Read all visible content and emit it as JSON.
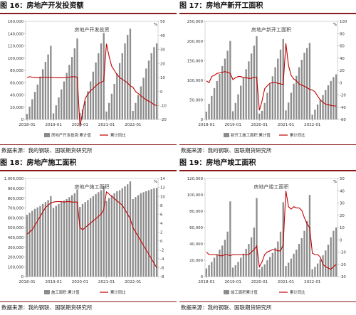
{
  "panels": [
    {
      "title": "图 16：房地产开发投资额",
      "source": "数据来源：我的钢联、国联期货研究所"
    },
    {
      "title": "图 17：房地产新开工面积",
      "source": "数据来源：我的钢联、国联期货研究所"
    },
    {
      "title": "图 18：房地产施工面积",
      "source": "数据来源：我的钢联、国联期货研究所"
    },
    {
      "title": "图 19：房地产竣工面积",
      "source": "数据来源：我的钢联、国联期货研究所"
    }
  ],
  "chart_data": [
    {
      "type": "bar+line",
      "inner_title": "房地产开发投资",
      "yticks_left": [
        "0",
        "20,000",
        "40,000",
        "60,000",
        "80,000",
        "100,000",
        "120,000",
        "140,000",
        "160,000"
      ],
      "yticks_right": [
        "-20",
        "-10",
        "0",
        "10",
        "20",
        "30",
        "40",
        "50"
      ],
      "right_unit": "%",
      "xticks": [
        "2018-01",
        "2019-01",
        "2020-01",
        "2021-01",
        "2022-01"
      ],
      "ylim_left": [
        0,
        160000
      ],
      "ylim_right": [
        -20,
        50
      ],
      "legend": [
        "房地产开发投资:累计值",
        "累计同比"
      ],
      "colors": {
        "bar": "#8c8c8c",
        "line": "#c00000"
      },
      "bars": [
        9000,
        21000,
        33000,
        45000,
        57000,
        70000,
        82000,
        94000,
        106000,
        120000,
        10000,
        23000,
        36000,
        49000,
        62000,
        76000,
        89000,
        102000,
        116000,
        132000,
        10500,
        16500,
        30000,
        46000,
        62000,
        78000,
        93000,
        108000,
        124000,
        141000,
        13000,
        27000,
        42000,
        58000,
        75000,
        92000,
        108000,
        124000,
        138000,
        148000,
        14000,
        27000,
        40000,
        54000,
        68000,
        83000,
        96000,
        108000,
        118000,
        124000
      ],
      "line": [
        10,
        10.5,
        10.2,
        10,
        9.8,
        9.9,
        10,
        10.2,
        10.1,
        10.2,
        9.9,
        9.8,
        9.8,
        9.8,
        9.9,
        10,
        10.2,
        10.5,
        10.5,
        10.2,
        -25,
        -15,
        -5,
        -2,
        0.5,
        2,
        4,
        5.6,
        6.5,
        7.5,
        34,
        25,
        18,
        15,
        12,
        10,
        8.5,
        7.5,
        6,
        4,
        3,
        0,
        -1.5,
        -3,
        -4.5,
        -6,
        -7,
        -8,
        -9.5,
        -10
      ]
    },
    {
      "type": "bar+line",
      "inner_title": "房地产新开工面积",
      "yticks_left": [
        "0",
        "50,000",
        "100,000",
        "150,000",
        "200,000",
        "250,000"
      ],
      "yticks_right": [
        "-60",
        "-40",
        "-20",
        "0",
        "20",
        "40",
        "60",
        "80",
        "100"
      ],
      "right_unit": "%",
      "xticks": [
        "2018-01",
        "2019-01",
        "2020-01",
        "2021-01",
        "2022-01"
      ],
      "ylim_left": [
        0,
        250000
      ],
      "ylim_right": [
        -60,
        100
      ],
      "legend": [
        "新开工施工面积:累计值",
        "累计同比"
      ],
      "colors": {
        "bar": "#8c8c8c",
        "line": "#c00000"
      },
      "bars": [
        20000,
        40000,
        60000,
        80000,
        98000,
        116000,
        136000,
        155000,
        175000,
        200000,
        21000,
        42000,
        64000,
        86000,
        106000,
        128000,
        148000,
        168000,
        188000,
        212000,
        15000,
        22000,
        42000,
        68000,
        90000,
        110000,
        133000,
        155000,
        178000,
        205000,
        23000,
        43000,
        68000,
        91000,
        111000,
        133000,
        152000,
        170000,
        182000,
        195000,
        12000,
        25000,
        38000,
        50000,
        62000,
        75000,
        87000,
        98000,
        108000,
        115000
      ],
      "line": [
        3,
        0,
        10,
        12,
        15,
        16,
        17,
        18,
        17,
        15,
        5,
        8,
        10,
        10,
        8,
        8,
        7,
        7,
        9,
        9,
        -45,
        -30,
        -10,
        -5,
        -1,
        0,
        0.5,
        -1,
        -2,
        -3,
        64,
        28,
        12,
        6,
        3,
        -2,
        -4,
        -6,
        -8,
        -11,
        -12,
        -15,
        -22,
        -28,
        -32,
        -35,
        -36,
        -37,
        -38,
        -38
      ]
    },
    {
      "type": "bar+line",
      "inner_title": "房地产施工面积",
      "yticks_left": [
        "0",
        "100,000",
        "200,000",
        "300,000",
        "400,000",
        "500,000",
        "600,000",
        "700,000",
        "800,000",
        "900,000",
        "1,000,000"
      ],
      "yticks_right": [
        "-8",
        "-6",
        "-4",
        "-2",
        "0",
        "2",
        "4",
        "6",
        "8",
        "10",
        "12",
        "14"
      ],
      "right_unit": "%",
      "xticks": [
        "2018-01",
        "2019-01",
        "2020-01",
        "2021-01",
        "2022-01"
      ],
      "ylim_left": [
        0,
        1000000
      ],
      "ylim_right": [
        -8,
        14
      ],
      "legend": [
        "施工面积:累计值",
        "累计同比"
      ],
      "colors": {
        "bar": "#8c8c8c",
        "line": "#c00000"
      },
      "bars": [
        630000,
        650000,
        670000,
        690000,
        705000,
        720000,
        740000,
        760000,
        780000,
        820000,
        700000,
        720000,
        740000,
        760000,
        775000,
        790000,
        810000,
        830000,
        850000,
        890000,
        710000,
        740000,
        760000,
        780000,
        800000,
        820000,
        840000,
        860000,
        880000,
        920000,
        770000,
        800000,
        830000,
        850000,
        870000,
        880000,
        900000,
        920000,
        940000,
        970000,
        790000,
        810000,
        830000,
        850000,
        860000,
        870000,
        880000,
        890000,
        900000,
        905000
      ],
      "line": [
        1.5,
        2,
        2.5,
        3.5,
        4.5,
        5.5,
        6.5,
        7.5,
        8,
        8.5,
        8.7,
        8.8,
        8.8,
        8.8,
        8.7,
        8.8,
        8.8,
        8.7,
        8.7,
        8.7,
        3,
        2.5,
        3,
        3.5,
        4,
        4.5,
        5,
        5.5,
        6,
        7,
        11,
        10.5,
        10,
        9.5,
        9,
        8.5,
        8,
        7,
        6,
        5,
        3,
        2,
        1,
        0,
        -1,
        -2,
        -3,
        -4,
        -5,
        -6
      ]
    },
    {
      "type": "bar+line",
      "inner_title": "房地产竣工面积",
      "yticks_left": [
        "0",
        "20,000",
        "40,000",
        "60,000",
        "80,000",
        "100,000",
        "120,000"
      ],
      "yticks_right": [
        "-30",
        "-20",
        "-10",
        "0",
        "10",
        "20",
        "30",
        "40",
        "50"
      ],
      "right_unit": "%",
      "xticks": [
        "2018-01",
        "2019-01",
        "2020-01",
        "2021-01",
        "2022-01"
      ],
      "ylim_left": [
        0,
        120000
      ],
      "ylim_right": [
        -30,
        50
      ],
      "legend": [
        "竣工面积累计值",
        "累计同比"
      ],
      "colors": {
        "bar": "#8c8c8c",
        "line": "#c00000"
      },
      "bars": [
        10000,
        14000,
        18000,
        23000,
        27000,
        33000,
        38000,
        45000,
        55000,
        92000,
        11000,
        14000,
        18000,
        23000,
        28000,
        34000,
        40000,
        48000,
        60000,
        96000,
        9000,
        12000,
        15000,
        20000,
        24000,
        29000,
        35000,
        43000,
        55000,
        91000,
        13000,
        17000,
        22000,
        28000,
        33000,
        40000,
        47000,
        56000,
        68000,
        100000,
        9000,
        12000,
        16000,
        21000,
        26000,
        32000,
        39000,
        48000,
        56000,
        60000
      ],
      "line": [
        -10,
        -12,
        -12,
        -12,
        -12,
        -13,
        -13,
        -12,
        -12,
        -13,
        -12,
        -12,
        -12,
        -12,
        -12,
        -12,
        -12,
        -10,
        -8,
        -5,
        -22,
        -18,
        -12,
        -10,
        -9,
        -8,
        -8,
        -9,
        -9,
        -4,
        40,
        27,
        25,
        27,
        26,
        26,
        24,
        18,
        13,
        10,
        -11,
        -12,
        -12,
        -14,
        -20,
        -22,
        -23,
        -24,
        -22,
        -20
      ]
    }
  ]
}
